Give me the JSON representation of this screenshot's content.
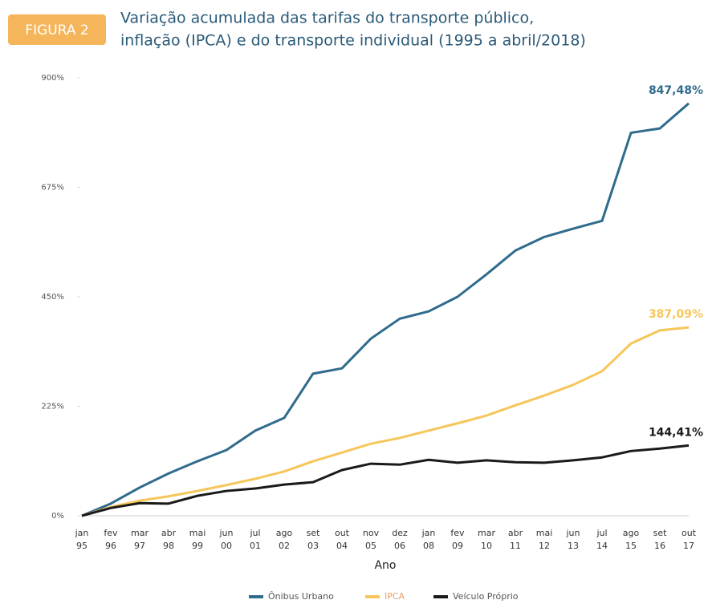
{
  "badge": "FIGURA 2",
  "chart_data": {
    "type": "line",
    "title": [
      "Variação acumulada das tarifas do transporte público,",
      "inflação (IPCA) e do transporte individual (1995 a abril/2018)"
    ],
    "x_label": "Ano",
    "categories": [
      "jan 95",
      "fev 96",
      "mar 97",
      "abr 98",
      "mai 99",
      "jun 00",
      "jul 01",
      "ago 02",
      "set 03",
      "out 04",
      "nov 05",
      "dez 06",
      "jan 08",
      "fev 09",
      "mar 10",
      "abr 11",
      "mai 12",
      "jun 13",
      "jul 14",
      "ago 15",
      "set 16",
      "out 17"
    ],
    "series": [
      {
        "name": "Ônibus Urbano",
        "color": "#2f6b8c",
        "values": [
          0,
          25,
          58,
          87,
          112,
          135,
          175,
          201,
          292,
          303,
          364,
          405,
          420,
          450,
          496,
          545,
          573,
          590,
          606,
          787,
          796,
          847.48
        ],
        "value_labels": [
          null,
          null,
          null,
          null,
          null,
          null,
          null,
          null,
          null,
          null,
          null,
          null,
          null,
          null,
          null,
          null,
          null,
          null,
          null,
          null,
          null,
          "847,48%"
        ]
      },
      {
        "name": "IPCA",
        "color": "#f6c65a",
        "values": [
          0,
          18,
          31,
          40,
          51,
          63,
          76,
          91,
          112,
          130,
          148,
          160,
          175,
          190,
          206,
          227,
          247,
          269,
          297,
          354,
          381,
          387.09
        ],
        "value_labels": [
          null,
          null,
          null,
          null,
          null,
          null,
          null,
          null,
          null,
          null,
          null,
          null,
          null,
          null,
          null,
          null,
          null,
          null,
          null,
          null,
          null,
          "387,09%"
        ]
      },
      {
        "name": "Veículo Próprio",
        "color": "#1a1a1a",
        "values": [
          0,
          16,
          26,
          25,
          41,
          51,
          56,
          64,
          69,
          94,
          107,
          105,
          115,
          109,
          114,
          110,
          109,
          114,
          120,
          133,
          138,
          144.41
        ],
        "value_labels": [
          null,
          null,
          null,
          null,
          null,
          null,
          null,
          null,
          null,
          null,
          null,
          null,
          null,
          null,
          null,
          null,
          null,
          null,
          null,
          null,
          null,
          "144,41%"
        ]
      }
    ],
    "ylim": [
      0,
      900
    ],
    "yticks": [
      {
        "value": 0,
        "label": "0%"
      },
      {
        "value": 225,
        "label": "225%"
      },
      {
        "value": 450,
        "label": "450%"
      },
      {
        "value": 675,
        "label": "675%"
      },
      {
        "value": 900,
        "label": "900%"
      }
    ],
    "grid": false
  }
}
